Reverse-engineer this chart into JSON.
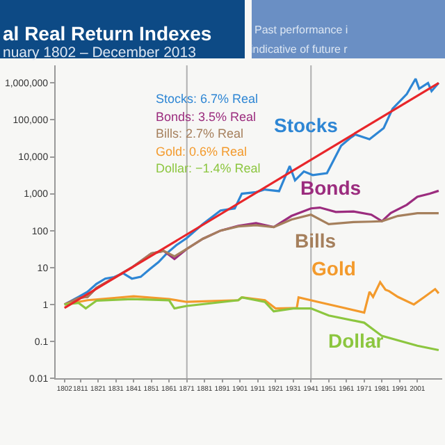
{
  "chart_data": {
    "type": "line",
    "title": "al Real Return Indexes",
    "subtitle": "nuary 1802 – December 2013",
    "annotations": [
      "Stocks: 6.7% Real",
      "Bonds: 3.5% Real",
      "Bills: 2.7% Real",
      "Gold: 0.6% Real",
      "Dollar: −1.4% Real",
      "Past performance i",
      "indicative of future r"
    ],
    "series": [
      {
        "name": "Stocks",
        "color": "#2e86d4",
        "x": [
          1802,
          1810,
          1815,
          1820,
          1825,
          1830,
          1835,
          1840,
          1845,
          1850,
          1855,
          1860,
          1865,
          1871,
          1880,
          1890,
          1898,
          1902,
          1910,
          1915,
          1923,
          1929,
          1932,
          1937,
          1942,
          1950,
          1958,
          1963,
          1966,
          1974,
          1982,
          1987,
          1995,
          2000,
          2002,
          2007,
          2009,
          2013
        ],
        "values": [
          1.0,
          1.6,
          2.2,
          3.6,
          5,
          5.5,
          7,
          5,
          5.6,
          9,
          14,
          25,
          40,
          63,
          150,
          350,
          400,
          1000,
          1100,
          1300,
          1170,
          5600,
          2300,
          4000,
          3200,
          3600,
          20000,
          32000,
          40000,
          30000,
          60000,
          200000,
          500000,
          1300000,
          700000,
          1000000,
          600000,
          1000000
        ]
      },
      {
        "name": "Bonds",
        "color": "#9b2c7e",
        "x": [
          1802,
          1810,
          1815,
          1820,
          1831,
          1840,
          1851,
          1858,
          1864,
          1871,
          1880,
          1890,
          1900,
          1910,
          1920,
          1930,
          1941,
          1946,
          1955,
          1965,
          1975,
          1981,
          1986,
          1995,
          2001,
          2008,
          2013
        ],
        "values": [
          1,
          1.5,
          1.6,
          2.8,
          5.6,
          10,
          24,
          28,
          17,
          32,
          60,
          100,
          135,
          160,
          125,
          250,
          400,
          420,
          320,
          330,
          270,
          180,
          300,
          500,
          830,
          1000,
          1200
        ]
      },
      {
        "name": "Bills",
        "color": "#a57f5c",
        "x": [
          1802,
          1810,
          1815,
          1820,
          1831,
          1840,
          1851,
          1858,
          1864,
          1871,
          1880,
          1890,
          1900,
          1910,
          1920,
          1930,
          1941,
          1951,
          1965,
          1975,
          1981,
          1990,
          2001,
          2013
        ],
        "values": [
          1,
          1.5,
          1.6,
          2.8,
          5.6,
          10,
          24,
          28,
          20,
          32,
          60,
          100,
          130,
          140,
          125,
          200,
          270,
          150,
          170,
          175,
          180,
          250,
          295,
          295
        ]
      },
      {
        "name": "Gold",
        "color": "#f39a2c",
        "x": [
          1802,
          1815,
          1830,
          1841,
          1861,
          1871,
          1900,
          1902,
          1915,
          1921,
          1931,
          1933,
          1934,
          1945,
          1960,
          1971,
          1974,
          1976,
          1980,
          1983,
          1985,
          1990,
          1999,
          2005,
          2011,
          2013
        ],
        "values": [
          1,
          1.3,
          1.5,
          1.66,
          1.4,
          1.17,
          1.3,
          1.55,
          1.3,
          0.78,
          0.8,
          0.8,
          1.55,
          1.17,
          0.8,
          0.6,
          2.2,
          1.6,
          4.0,
          2.5,
          2.3,
          1.6,
          1.0,
          1.6,
          2.6,
          2.0
        ]
      },
      {
        "name": "Dollar",
        "color": "#8cc63f",
        "x": [
          1802,
          1810,
          1814,
          1820,
          1840,
          1861,
          1864,
          1871,
          1900,
          1902,
          1915,
          1920,
          1931,
          1941,
          1951,
          1971,
          1981,
          2001,
          2013
        ],
        "values": [
          1,
          1.1,
          0.78,
          1.26,
          1.4,
          1.3,
          0.78,
          0.91,
          1.3,
          1.55,
          1.17,
          0.65,
          0.78,
          0.78,
          0.5,
          0.32,
          0.14,
          0.076,
          0.058
        ]
      },
      {
        "color": "#e8262a",
        "x": [
          1802,
          2013
        ],
        "values": [
          0.8,
          1000000
        ]
      }
    ],
    "log": "y",
    "xlim": [
      1797,
      2015
    ],
    "ylim": [
      0.01,
      3000000
    ],
    "xticks": [
      1802,
      1811,
      1821,
      1831,
      1841,
      1851,
      1861,
      1871,
      1881,
      1891,
      1901,
      1911,
      1921,
      1931,
      1941,
      1951,
      1961,
      1971,
      1981,
      1991,
      2001
    ],
    "yticks": [
      {
        "value": 1000000,
        "label": "1,000,000"
      },
      {
        "value": 100000,
        "label": "100,000"
      },
      {
        "value": 10000,
        "label": "10,000"
      },
      {
        "value": 1000,
        "label": "1,000"
      },
      100,
      10,
      1,
      0.1,
      0.01
    ],
    "ref_lines": [
      {
        "axis": "x",
        "value": 1871,
        "color": "#b0b0b0"
      },
      {
        "axis": "x",
        "value": 1941,
        "color": "#b0b0b0"
      }
    ],
    "grid": false,
    "legend": false,
    "line_style": "solid",
    "marker": "none"
  }
}
